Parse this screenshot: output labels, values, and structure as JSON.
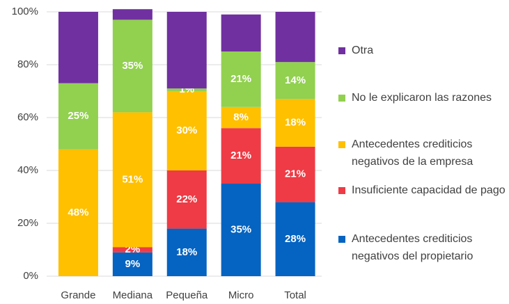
{
  "chart_data": {
    "type": "stacked_bar",
    "categories": [
      "Grande",
      "Mediana",
      "Pequeña",
      "Micro",
      "Total"
    ],
    "series": [
      {
        "name": "Antecedentes crediticios negativos del propietario",
        "color": "#0563c1",
        "values": [
          0,
          9,
          18,
          35,
          28
        ],
        "value_labels": [
          null,
          "9%",
          "18%",
          "35%",
          "28%"
        ]
      },
      {
        "name": "Insuficiente capacidad de pago",
        "color": "#ee3b45",
        "values": [
          0,
          2,
          22,
          21,
          21
        ],
        "value_labels": [
          null,
          "2%",
          "22%",
          "21%",
          "21%"
        ]
      },
      {
        "name": "Antecedentes crediticios negativos de la empresa",
        "color": "#ffc000",
        "values": [
          48,
          51,
          30,
          8,
          18
        ],
        "value_labels": [
          "48%",
          "51%",
          "30%",
          "8%",
          "18%"
        ]
      },
      {
        "name": "No le explicaron las razones",
        "color": "#92d050",
        "values": [
          25,
          35,
          1,
          21,
          14
        ],
        "value_labels": [
          "25%",
          "35%",
          "1%",
          "21%",
          "14%"
        ]
      },
      {
        "name": "Otra",
        "color": "#7030a0",
        "values": [
          27,
          4,
          29,
          14,
          19
        ],
        "value_labels": [
          null,
          null,
          null,
          null,
          null
        ]
      }
    ],
    "ylim": [
      0,
      100
    ],
    "yticks": [
      {
        "value": 0,
        "label": "0%"
      },
      {
        "value": 20,
        "label": "20%"
      },
      {
        "value": 40,
        "label": "40%"
      },
      {
        "value": 60,
        "label": "60%"
      },
      {
        "value": 80,
        "label": "80%"
      },
      {
        "value": 100,
        "label": "100%"
      }
    ],
    "grid": true,
    "legend": "right"
  }
}
